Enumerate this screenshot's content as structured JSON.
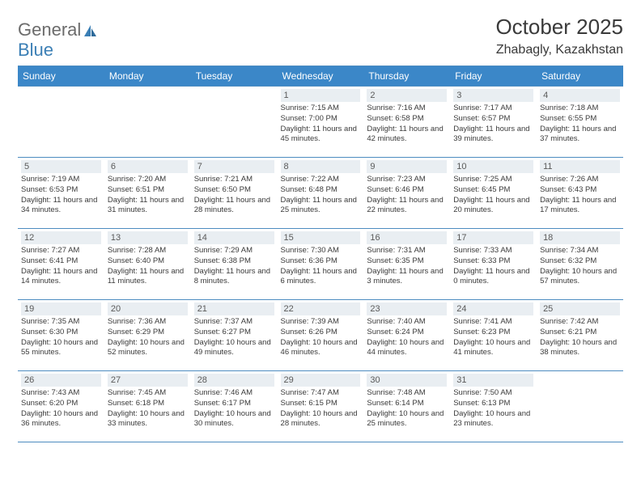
{
  "logo": {
    "text1": "General",
    "text2": "Blue"
  },
  "title": "October 2025",
  "subtitle": "Zhabagly, Kazakhstan",
  "colors": {
    "header_bg": "#3b87c8",
    "header_text": "#ffffff",
    "border": "#4d8cc0",
    "daynum_bg": "#e9eef2",
    "text": "#3a3a3a",
    "logo_gray": "#6b6b6b",
    "logo_blue": "#3b7fb5"
  },
  "weekdays": [
    "Sunday",
    "Monday",
    "Tuesday",
    "Wednesday",
    "Thursday",
    "Friday",
    "Saturday"
  ],
  "weeks": [
    [
      null,
      null,
      null,
      {
        "d": "1",
        "sr": "7:15 AM",
        "ss": "7:00 PM",
        "dl": "11 hours and 45 minutes."
      },
      {
        "d": "2",
        "sr": "7:16 AM",
        "ss": "6:58 PM",
        "dl": "11 hours and 42 minutes."
      },
      {
        "d": "3",
        "sr": "7:17 AM",
        "ss": "6:57 PM",
        "dl": "11 hours and 39 minutes."
      },
      {
        "d": "4",
        "sr": "7:18 AM",
        "ss": "6:55 PM",
        "dl": "11 hours and 37 minutes."
      }
    ],
    [
      {
        "d": "5",
        "sr": "7:19 AM",
        "ss": "6:53 PM",
        "dl": "11 hours and 34 minutes."
      },
      {
        "d": "6",
        "sr": "7:20 AM",
        "ss": "6:51 PM",
        "dl": "11 hours and 31 minutes."
      },
      {
        "d": "7",
        "sr": "7:21 AM",
        "ss": "6:50 PM",
        "dl": "11 hours and 28 minutes."
      },
      {
        "d": "8",
        "sr": "7:22 AM",
        "ss": "6:48 PM",
        "dl": "11 hours and 25 minutes."
      },
      {
        "d": "9",
        "sr": "7:23 AM",
        "ss": "6:46 PM",
        "dl": "11 hours and 22 minutes."
      },
      {
        "d": "10",
        "sr": "7:25 AM",
        "ss": "6:45 PM",
        "dl": "11 hours and 20 minutes."
      },
      {
        "d": "11",
        "sr": "7:26 AM",
        "ss": "6:43 PM",
        "dl": "11 hours and 17 minutes."
      }
    ],
    [
      {
        "d": "12",
        "sr": "7:27 AM",
        "ss": "6:41 PM",
        "dl": "11 hours and 14 minutes."
      },
      {
        "d": "13",
        "sr": "7:28 AM",
        "ss": "6:40 PM",
        "dl": "11 hours and 11 minutes."
      },
      {
        "d": "14",
        "sr": "7:29 AM",
        "ss": "6:38 PM",
        "dl": "11 hours and 8 minutes."
      },
      {
        "d": "15",
        "sr": "7:30 AM",
        "ss": "6:36 PM",
        "dl": "11 hours and 6 minutes."
      },
      {
        "d": "16",
        "sr": "7:31 AM",
        "ss": "6:35 PM",
        "dl": "11 hours and 3 minutes."
      },
      {
        "d": "17",
        "sr": "7:33 AM",
        "ss": "6:33 PM",
        "dl": "11 hours and 0 minutes."
      },
      {
        "d": "18",
        "sr": "7:34 AM",
        "ss": "6:32 PM",
        "dl": "10 hours and 57 minutes."
      }
    ],
    [
      {
        "d": "19",
        "sr": "7:35 AM",
        "ss": "6:30 PM",
        "dl": "10 hours and 55 minutes."
      },
      {
        "d": "20",
        "sr": "7:36 AM",
        "ss": "6:29 PM",
        "dl": "10 hours and 52 minutes."
      },
      {
        "d": "21",
        "sr": "7:37 AM",
        "ss": "6:27 PM",
        "dl": "10 hours and 49 minutes."
      },
      {
        "d": "22",
        "sr": "7:39 AM",
        "ss": "6:26 PM",
        "dl": "10 hours and 46 minutes."
      },
      {
        "d": "23",
        "sr": "7:40 AM",
        "ss": "6:24 PM",
        "dl": "10 hours and 44 minutes."
      },
      {
        "d": "24",
        "sr": "7:41 AM",
        "ss": "6:23 PM",
        "dl": "10 hours and 41 minutes."
      },
      {
        "d": "25",
        "sr": "7:42 AM",
        "ss": "6:21 PM",
        "dl": "10 hours and 38 minutes."
      }
    ],
    [
      {
        "d": "26",
        "sr": "7:43 AM",
        "ss": "6:20 PM",
        "dl": "10 hours and 36 minutes."
      },
      {
        "d": "27",
        "sr": "7:45 AM",
        "ss": "6:18 PM",
        "dl": "10 hours and 33 minutes."
      },
      {
        "d": "28",
        "sr": "7:46 AM",
        "ss": "6:17 PM",
        "dl": "10 hours and 30 minutes."
      },
      {
        "d": "29",
        "sr": "7:47 AM",
        "ss": "6:15 PM",
        "dl": "10 hours and 28 minutes."
      },
      {
        "d": "30",
        "sr": "7:48 AM",
        "ss": "6:14 PM",
        "dl": "10 hours and 25 minutes."
      },
      {
        "d": "31",
        "sr": "7:50 AM",
        "ss": "6:13 PM",
        "dl": "10 hours and 23 minutes."
      },
      null
    ]
  ],
  "labels": {
    "sunrise": "Sunrise:",
    "sunset": "Sunset:",
    "daylight": "Daylight:"
  }
}
